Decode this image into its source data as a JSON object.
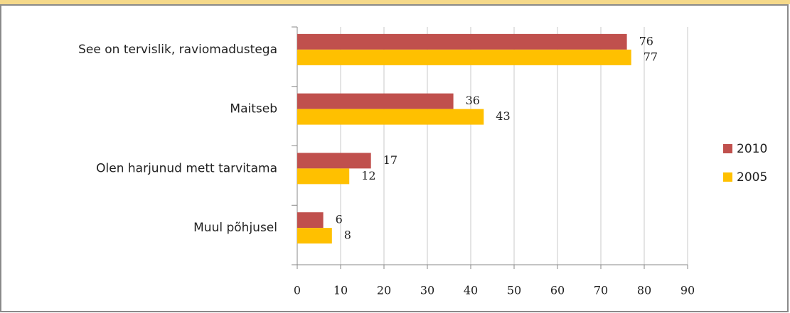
{
  "chart_data": {
    "type": "bar",
    "orientation": "horizontal",
    "categories": [
      "See on tervislik, raviomadustega",
      "Maitseb",
      "Olen harjunud mett tarvitama",
      "Muul põhjusel"
    ],
    "series": [
      {
        "name": "2010",
        "color": "#c0504d",
        "values": [
          76,
          36,
          17,
          6
        ]
      },
      {
        "name": "2005",
        "color": "#ffc000",
        "values": [
          77,
          43,
          12,
          8
        ]
      }
    ],
    "xlim": [
      0,
      90
    ],
    "xticks": [
      0,
      10,
      20,
      30,
      40,
      50,
      60,
      70,
      80,
      90
    ],
    "grid": true,
    "legend": "right"
  }
}
